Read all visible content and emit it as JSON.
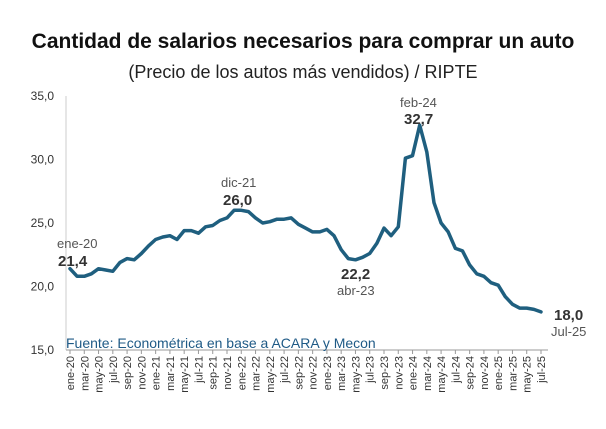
{
  "chart_data": {
    "type": "line",
    "title": "Cantidad de salarios necesarios para comprar un auto",
    "subtitle": "(Precio de los autos más vendidos) / RIPTE",
    "source": "Fuente: Econométrica en base a ACARA y Mecon",
    "ylim": [
      15,
      35
    ],
    "yticks": [
      "15,0",
      "20,0",
      "25,0",
      "30,0",
      "35,0"
    ],
    "ytick_values": [
      15,
      20,
      25,
      30,
      35
    ],
    "grid": false,
    "line_color": "#1f5f7f",
    "x_labels": [
      "ene-20",
      "mar-20",
      "may-20",
      "jul-20",
      "sep-20",
      "nov-20",
      "ene-21",
      "mar-21",
      "may-21",
      "jul-21",
      "sep-21",
      "nov-21",
      "ene-22",
      "mar-22",
      "may-22",
      "jul-22",
      "sep-22",
      "nov-22",
      "ene-23",
      "mar-23",
      "may-23",
      "jul-23",
      "sep-23",
      "nov-23",
      "ene-24",
      "mar-24",
      "may-24",
      "jul-24",
      "sep-24",
      "nov-24",
      "ene-25",
      "mar-25",
      "may-25",
      "jul-25"
    ],
    "series": [
      {
        "values": [
          21.4,
          20.8,
          20.8,
          21.0,
          21.4,
          21.3,
          21.2,
          21.9,
          22.2,
          22.1,
          22.6,
          23.2,
          23.7,
          23.9,
          24.0,
          23.7,
          24.4,
          24.4,
          24.2,
          24.7,
          24.8,
          25.2,
          25.4,
          26.0,
          26.0,
          25.9,
          25.4,
          25.0,
          25.1,
          25.3,
          25.3,
          25.4,
          24.9,
          24.6,
          24.3,
          24.3,
          24.5,
          24.0,
          22.9,
          22.2,
          22.1,
          22.3,
          22.6,
          23.4,
          24.6,
          24.0,
          24.7,
          30.1,
          30.3,
          32.7,
          30.6,
          26.6,
          25.0,
          24.3,
          23.0,
          22.8,
          21.7,
          21.0,
          20.8,
          20.3,
          20.1,
          19.2,
          18.6,
          18.3,
          18.3,
          18.2,
          18.0
        ]
      }
    ],
    "annotations": [
      {
        "date": "ene-20",
        "value": "21,4"
      },
      {
        "date": "dic-21",
        "value": "26,0"
      },
      {
        "date": "abr-23",
        "value": "22,2"
      },
      {
        "date": "feb-24",
        "value": "32,7"
      },
      {
        "date": "Jul-25",
        "value": "18,0"
      }
    ]
  }
}
